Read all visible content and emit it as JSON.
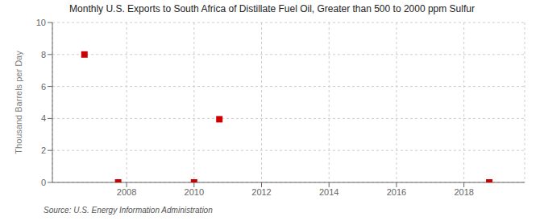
{
  "chart_data": {
    "type": "scatter",
    "title": "Monthly U.S. Exports to South Africa of Distillate Fuel Oil, Greater than 500 to 2000 ppm Sulfur",
    "y_label": "Thousand Barrels per Day",
    "annotations": [
      "Source: U.S. Energy Information Administration"
    ],
    "x": [
      2006.75,
      2007.75,
      2010.0,
      2010.75,
      2018.75
    ],
    "values": [
      8.0,
      0.0,
      0.0,
      3.95,
      0.0
    ],
    "xlim": [
      2005.8,
      2019.8
    ],
    "xticks": [
      2008,
      2010,
      2012,
      2014,
      2016,
      2018
    ],
    "ylim": [
      0,
      10
    ],
    "yticks": [
      0,
      2,
      4,
      6,
      8,
      10
    ],
    "color": "#cc0000",
    "marker": "square",
    "grid": true
  }
}
